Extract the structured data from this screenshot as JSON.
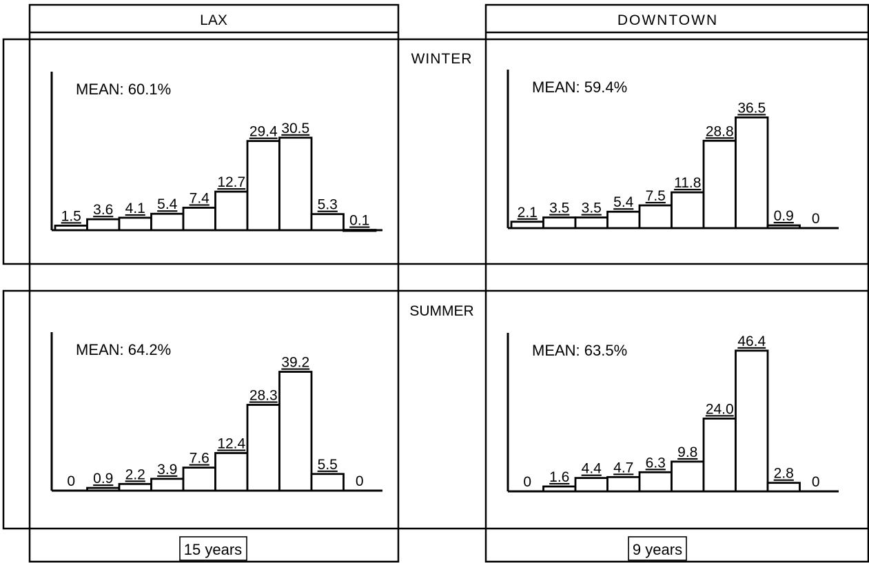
{
  "columns": [
    {
      "name": "LAX",
      "footer": "15 years"
    },
    {
      "name": "DOWNTOWN",
      "footer": "9 years"
    }
  ],
  "rows": [
    "WINTER",
    "SUMMER"
  ],
  "chart_data": [
    {
      "type": "bar",
      "station": "LAX",
      "season": "WINTER",
      "annotation": "MEAN:  60.1%",
      "values": [
        1.5,
        3.6,
        4.1,
        5.4,
        7.4,
        12.7,
        29.4,
        30.5,
        5.3,
        0.1
      ],
      "labels": [
        "1.5",
        "3.6",
        "4.1",
        "5.4",
        "7.4",
        "12.7",
        "29.4",
        "30.5",
        "5.3",
        "0.1"
      ]
    },
    {
      "type": "bar",
      "station": "DOWNTOWN",
      "season": "WINTER",
      "annotation": "MEAN:  59.4%",
      "values": [
        2.1,
        3.5,
        3.5,
        5.4,
        7.5,
        11.8,
        28.8,
        36.5,
        0.9,
        0
      ],
      "labels": [
        "2.1",
        "3.5",
        "3.5",
        "5.4",
        "7.5",
        "11.8",
        "28.8",
        "36.5",
        "0.9",
        "0"
      ]
    },
    {
      "type": "bar",
      "station": "LAX",
      "season": "SUMMER",
      "annotation": "MEAN:  64.2%",
      "values": [
        0,
        0.9,
        2.2,
        3.9,
        7.6,
        12.4,
        28.3,
        39.2,
        5.5,
        0
      ],
      "labels": [
        "0",
        "0.9",
        "2.2",
        "3.9",
        "7.6",
        "12.4",
        "28.3",
        "39.2",
        "5.5",
        "0"
      ]
    },
    {
      "type": "bar",
      "station": "DOWNTOWN",
      "season": "SUMMER",
      "annotation": "MEAN:  63.5%",
      "values": [
        0,
        1.6,
        4.4,
        4.7,
        6.3,
        9.8,
        24.0,
        46.4,
        2.8,
        0
      ],
      "labels": [
        "0",
        "1.6",
        "4.4",
        "4.7",
        "6.3",
        "9.8",
        "24.0",
        "46.4",
        "2.8",
        "0"
      ]
    }
  ]
}
